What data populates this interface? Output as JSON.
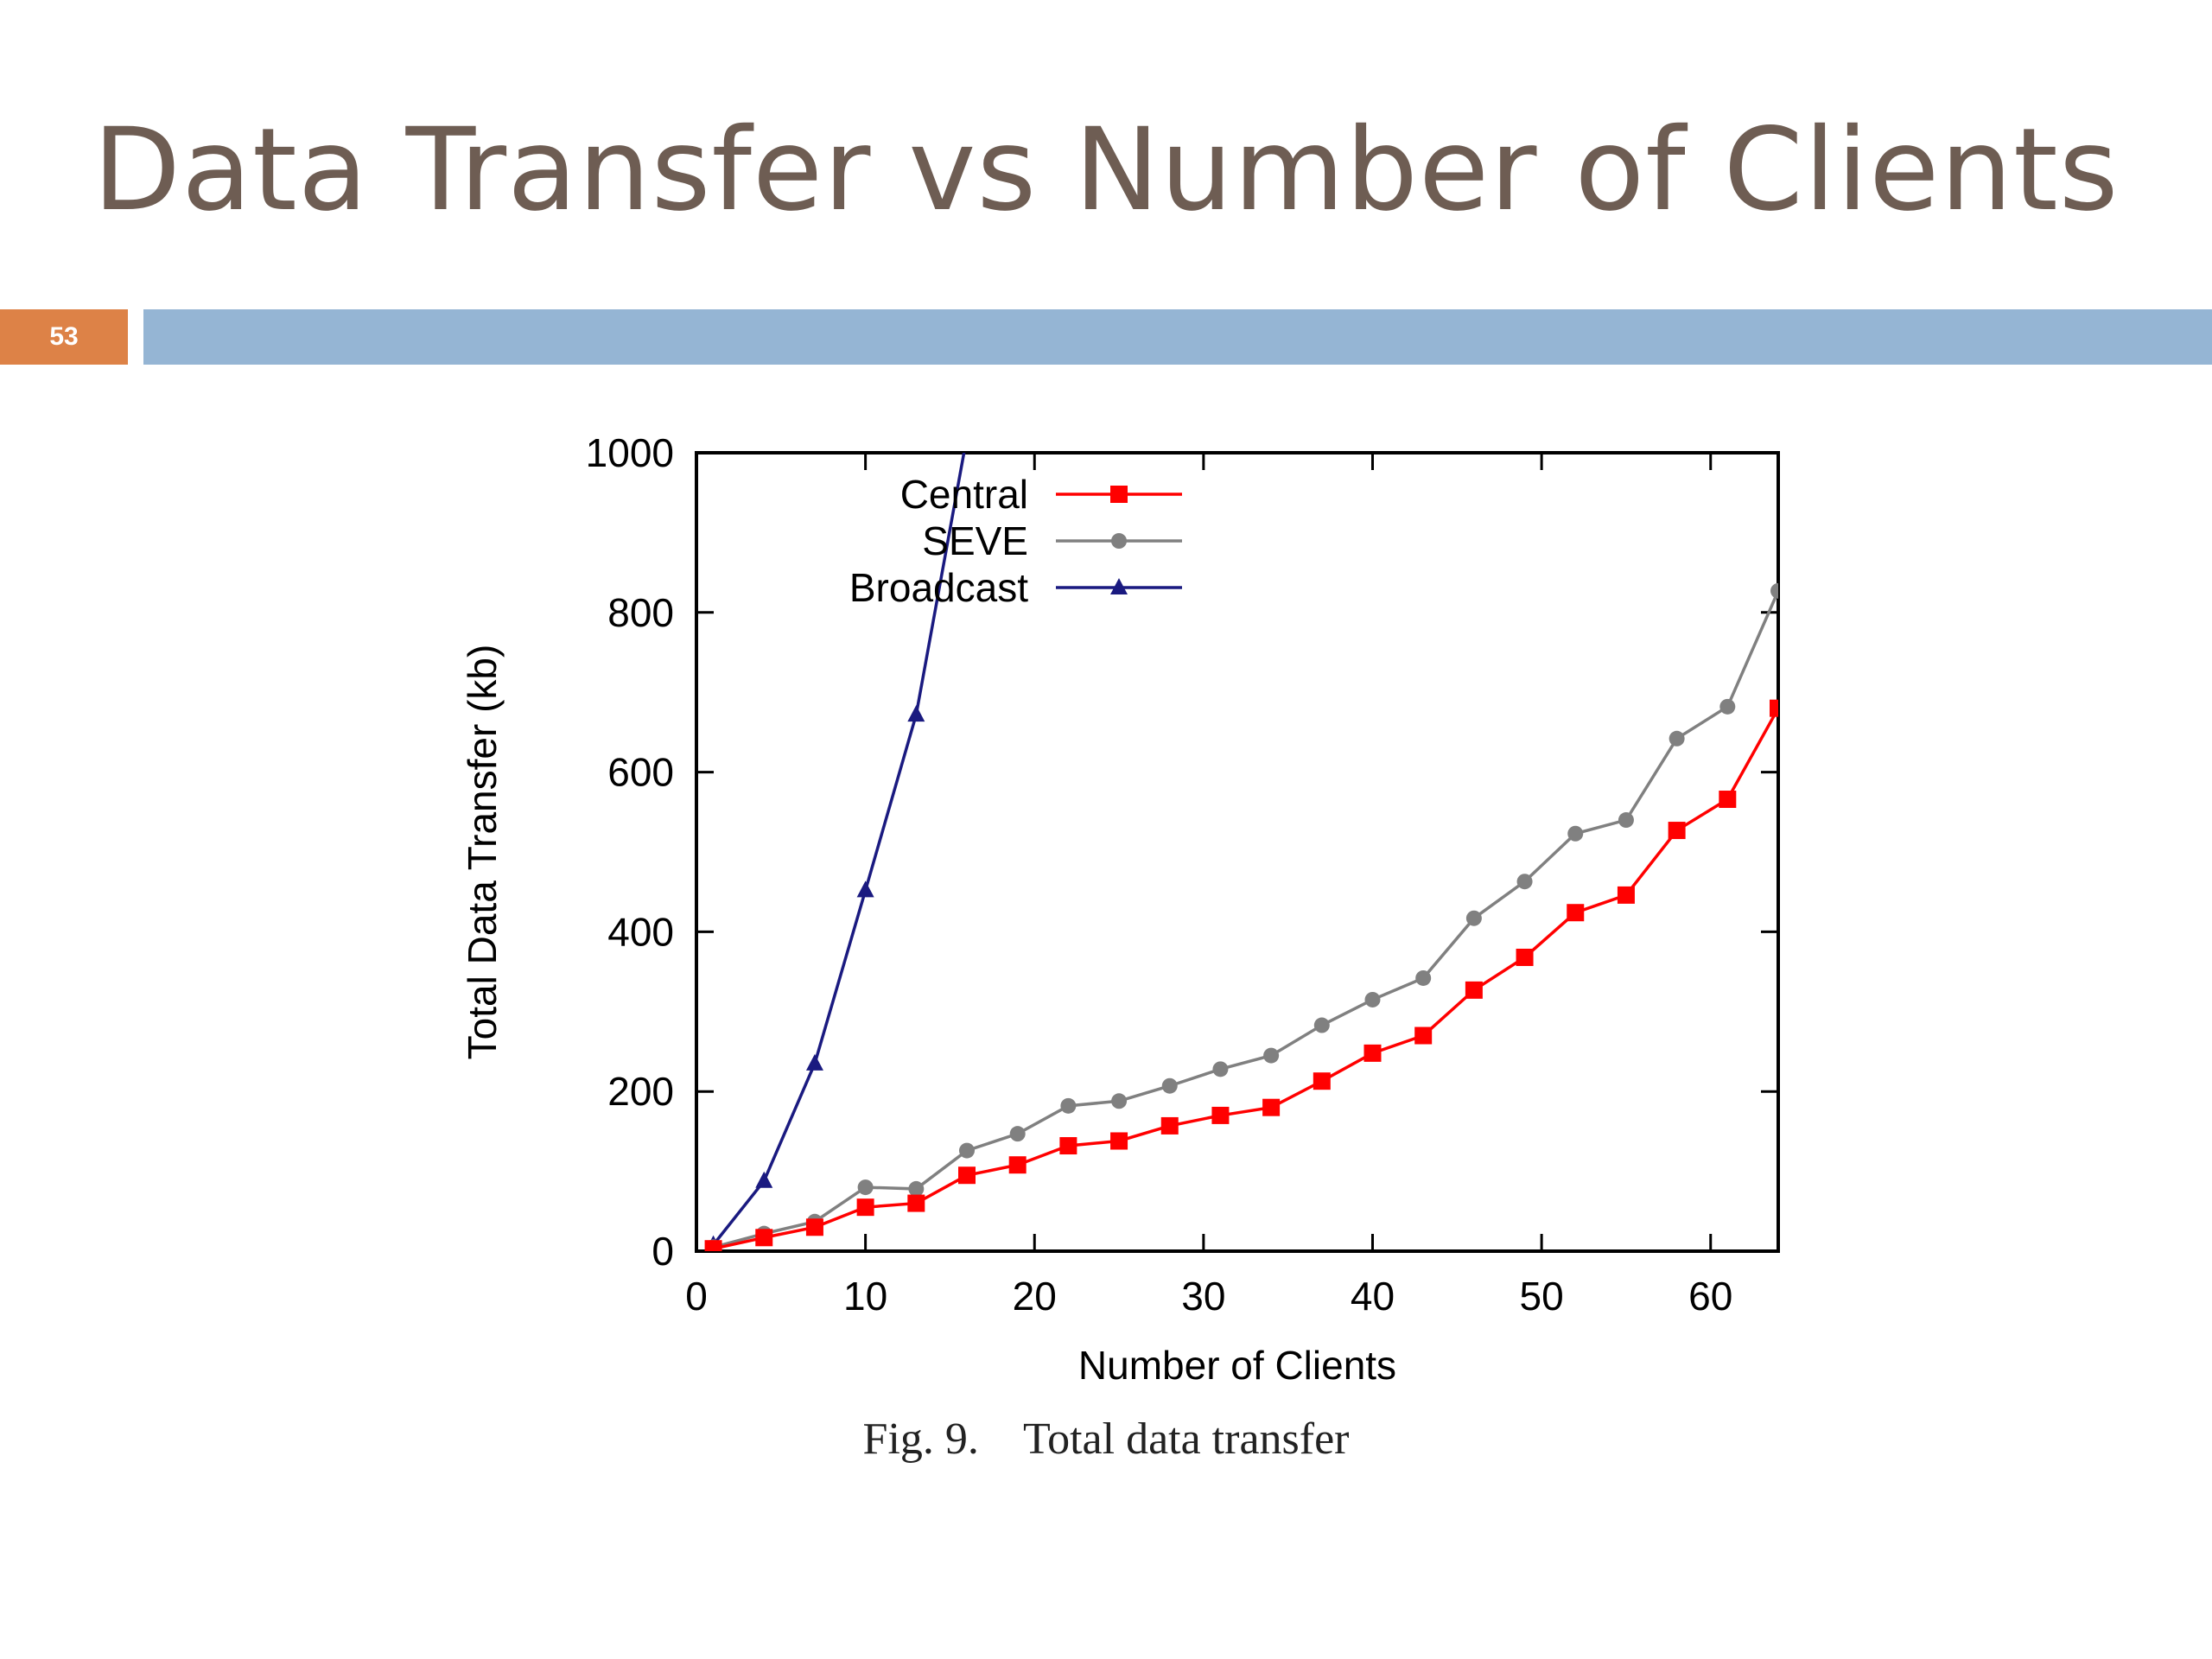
{
  "slide": {
    "title": "Data Transfer vs Number of Clients",
    "number": "53",
    "caption": "Fig. 9.    Total data transfer"
  },
  "colors": {
    "title": "#6e5d53",
    "number_tab": "#dd8247",
    "band": "#95b5d4",
    "central": "#ff0000",
    "seve": "#808080",
    "broadcast": "#1a1a80"
  },
  "chart_data": {
    "type": "line",
    "xlabel": "Number of Clients",
    "ylabel": "Total Data Transfer (kb)",
    "xlim": [
      0,
      64
    ],
    "ylim": [
      0,
      1000
    ],
    "xticks": [
      0,
      10,
      20,
      30,
      40,
      50,
      60
    ],
    "yticks": [
      0,
      200,
      400,
      600,
      800,
      1000
    ],
    "legend_position": "top-left",
    "grid": false,
    "series": [
      {
        "name": "Central",
        "marker": "square",
        "color": "#ff0000",
        "x": [
          1,
          4,
          7,
          10,
          13,
          16,
          19,
          22,
          25,
          28,
          31,
          34,
          37,
          40,
          43,
          46,
          49,
          52,
          55,
          58,
          61,
          64
        ],
        "y": [
          3,
          17,
          30,
          55,
          60,
          95,
          108,
          132,
          138,
          157,
          170,
          180,
          213,
          248,
          270,
          327,
          368,
          424,
          446,
          527,
          566,
          680
        ]
      },
      {
        "name": "SEVE",
        "marker": "circle",
        "color": "#808080",
        "x": [
          1,
          4,
          7,
          10,
          13,
          16,
          19,
          22,
          25,
          28,
          31,
          34,
          37,
          40,
          43,
          46,
          49,
          52,
          55,
          58,
          61,
          64
        ],
        "y": [
          5,
          22,
          37,
          80,
          78,
          126,
          147,
          182,
          188,
          207,
          228,
          245,
          283,
          315,
          342,
          417,
          463,
          523,
          540,
          642,
          682,
          827
        ]
      },
      {
        "name": "Broadcast",
        "marker": "triangle",
        "color": "#1a1a80",
        "x": [
          1,
          4,
          7,
          10,
          13,
          16
        ],
        "y": [
          8,
          88,
          235,
          452,
          672,
          1020
        ]
      }
    ]
  }
}
